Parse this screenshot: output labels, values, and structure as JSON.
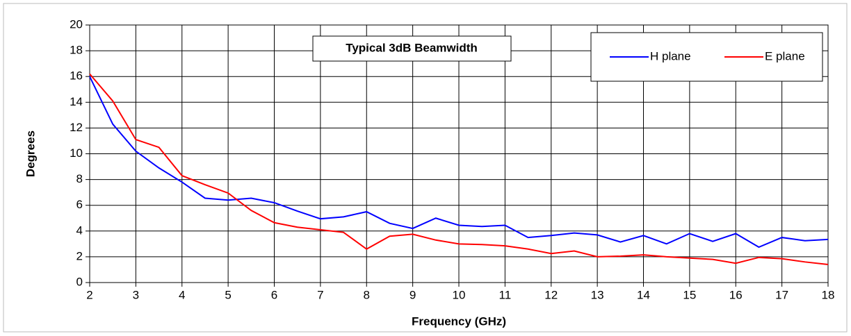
{
  "chart_data": {
    "type": "line",
    "title": "Typical 3dB Beamwidth",
    "x_label": "Frequency (GHz)",
    "y_label": "Degrees",
    "x": [
      2,
      2.5,
      3,
      3.5,
      4,
      4.5,
      5,
      5.5,
      6,
      6.5,
      7,
      7.5,
      8,
      8.5,
      9,
      9.5,
      10,
      10.5,
      11,
      11.5,
      12,
      12.5,
      13,
      13.5,
      14,
      14.5,
      15,
      15.5,
      16,
      16.5,
      17,
      17.5,
      18
    ],
    "series": [
      {
        "name": "H plane",
        "color": "#0000ff",
        "values": [
          16.0,
          12.3,
          10.2,
          8.9,
          7.8,
          6.55,
          6.4,
          6.55,
          6.2,
          5.55,
          4.95,
          5.1,
          5.5,
          4.6,
          4.2,
          5.0,
          4.45,
          4.35,
          4.45,
          3.5,
          3.65,
          3.85,
          3.7,
          3.15,
          3.65,
          3.0,
          3.8,
          3.2,
          3.8,
          2.75,
          3.5,
          3.25,
          3.35
        ]
      },
      {
        "name": "E plane",
        "color": "#ff0000",
        "values": [
          16.2,
          14.1,
          11.1,
          10.5,
          8.3,
          7.6,
          6.95,
          5.6,
          4.65,
          4.3,
          4.1,
          3.9,
          2.6,
          3.6,
          3.75,
          3.3,
          3.0,
          2.95,
          2.85,
          2.6,
          2.25,
          2.45,
          2.0,
          2.05,
          2.15,
          2.0,
          1.9,
          1.8,
          1.5,
          1.95,
          1.85,
          1.6,
          1.4
        ]
      }
    ],
    "xlim": [
      2,
      18
    ],
    "xticks": [
      2,
      3,
      4,
      5,
      6,
      7,
      8,
      9,
      10,
      11,
      12,
      13,
      14,
      15,
      16,
      17,
      18
    ],
    "ylim": [
      0,
      20
    ],
    "yticks": [
      0,
      2,
      4,
      6,
      8,
      10,
      12,
      14,
      16,
      18,
      20
    ],
    "grid": true,
    "legend": "upper right"
  }
}
